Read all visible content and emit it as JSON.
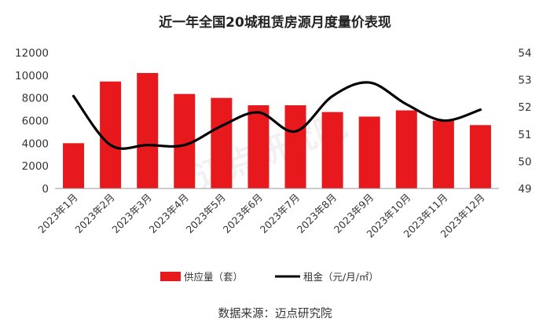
{
  "chart_data": {
    "type": "bar",
    "title": "近一年全国20城租赁房源月度量价表现",
    "categories": [
      "2023年1月",
      "2023年2月",
      "2023年3月",
      "2023年4月",
      "2023年5月",
      "2023年6月",
      "2023年7月",
      "2023年8月",
      "2023年9月",
      "2023年10月",
      "2023年11月",
      "2023年12月"
    ],
    "series": [
      {
        "name": "供应量（套）",
        "kind": "bar",
        "axis": "left",
        "color": "#e8191c",
        "values": [
          4000,
          9450,
          10200,
          8350,
          8000,
          7350,
          7350,
          6750,
          6350,
          6900,
          6000,
          5600
        ]
      },
      {
        "name": "租金（元/月/㎡）",
        "kind": "line",
        "axis": "right",
        "color": "#000000",
        "values": [
          52.4,
          50.6,
          50.6,
          50.6,
          51.3,
          51.8,
          51.1,
          52.4,
          52.9,
          52.1,
          51.5,
          51.9
        ]
      }
    ],
    "ylim_left": [
      0,
      12000
    ],
    "yticks_left": [
      "0",
      "2000",
      "4000",
      "6000",
      "8000",
      "10000",
      "12000"
    ],
    "ylim_right": [
      49,
      54
    ],
    "yticks_right": [
      "49",
      "50",
      "51",
      "52",
      "53",
      "54"
    ],
    "grid": false,
    "legend_position": "bottom"
  },
  "source_text": "数据来源：迈点研究院",
  "watermark": "迈点研究院"
}
